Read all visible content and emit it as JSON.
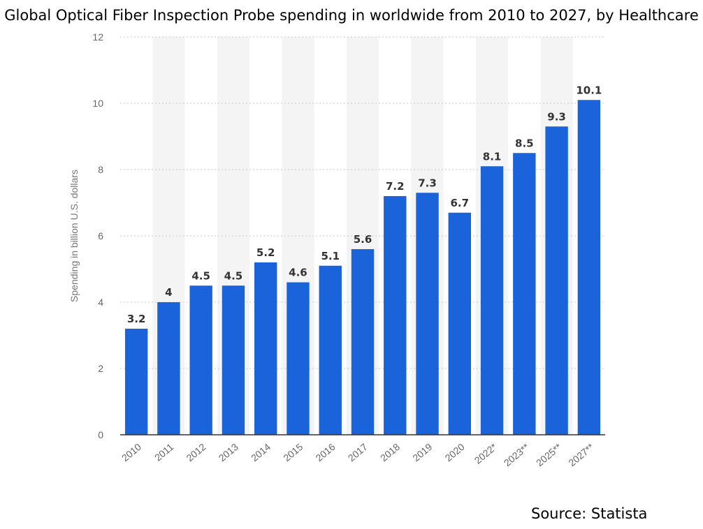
{
  "chart_data": {
    "type": "bar",
    "title": "Global Optical Fiber Inspection Probe spending in worldwide from 2010 to 2027, by Healthcare",
    "xlabel": "",
    "ylabel": "Spending in billion U.S. dollars",
    "categories": [
      "2010",
      "2011",
      "2012",
      "2013",
      "2014",
      "2015",
      "2016",
      "2017",
      "2018",
      "2019",
      "2020",
      "2022*",
      "2023**",
      "2025**",
      "2027**"
    ],
    "values": [
      3.2,
      4,
      4.5,
      4.5,
      5.2,
      4.6,
      5.1,
      5.6,
      7.2,
      7.3,
      6.7,
      8.1,
      8.5,
      9.3,
      10.1
    ],
    "value_labels": [
      "3.2",
      "4",
      "4.5",
      "4.5",
      "5.2",
      "4.6",
      "5.1",
      "5.6",
      "7.2",
      "7.3",
      "6.7",
      "8.1",
      "8.5",
      "9.3",
      "10.1"
    ],
    "ylim": [
      0,
      12
    ],
    "yticks": [
      0,
      2,
      4,
      6,
      8,
      10,
      12
    ],
    "grid": true,
    "legend": "none",
    "bar_color": "#1a63db",
    "alt_band_color": "#f4f4f4"
  },
  "source": "Source: Statista"
}
